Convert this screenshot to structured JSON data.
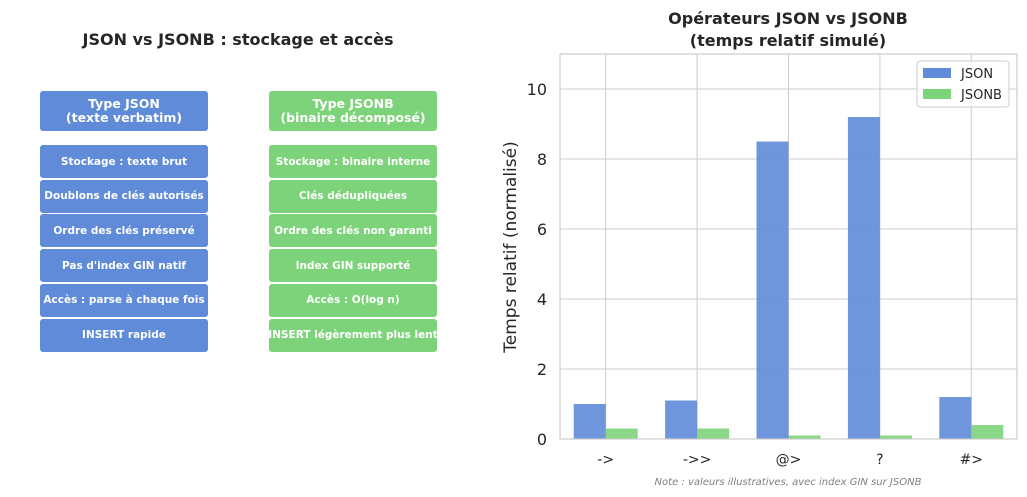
{
  "left_panel": {
    "title": "JSON vs JSONB : stockage et accès",
    "json_column": {
      "header_line1": "Type JSON",
      "header_line2": "(texte verbatim)",
      "items": [
        "Stockage : texte brut",
        "Doublons de clés autorisés",
        "Ordre des clés préservé",
        "Pas d'index GIN natif",
        "Accès : parse à chaque fois",
        "INSERT rapide"
      ]
    },
    "jsonb_column": {
      "header_line1": "Type JSONB",
      "header_line2": "(binaire décomposé)",
      "items": [
        "Stockage : binaire interne",
        "Clés dédupliquées",
        "Ordre des clés non garanti",
        "Index GIN supporté",
        "Accès : O(log n)",
        "INSERT légèrement plus lent"
      ]
    }
  },
  "chart_data": {
    "type": "bar",
    "title": "Opérateurs JSON vs JSONB\n(temps relatif simulé)",
    "title_line1": "Opérateurs JSON vs JSONB",
    "title_line2": "(temps relatif simulé)",
    "categories": [
      "->",
      "->>",
      "@>",
      "?",
      "#>"
    ],
    "series": [
      {
        "name": "JSON",
        "values": [
          1.0,
          1.1,
          8.5,
          9.2,
          1.2
        ],
        "color": "#5f8bd9"
      },
      {
        "name": "JSONB",
        "values": [
          0.3,
          0.3,
          0.1,
          0.1,
          0.4
        ],
        "color": "#7dd37a"
      }
    ],
    "xlabel": "",
    "ylabel": "Temps relatif (normalisé)",
    "ylim": [
      0,
      11
    ],
    "yticks": [
      0,
      2,
      4,
      6,
      8,
      10
    ],
    "grid": true,
    "legend": "top-right",
    "note": "Note : valeurs illustratives, avec index GIN sur JSONB"
  },
  "colors": {
    "json": "#5f8bd9",
    "jsonb": "#7dd37a",
    "grid": "#cccccc"
  }
}
